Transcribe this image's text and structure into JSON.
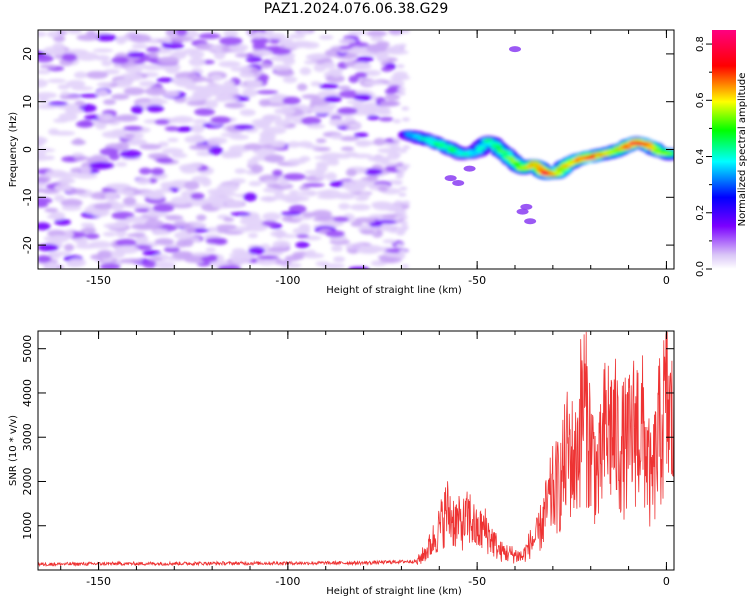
{
  "page": {
    "title": "PAZ1.2024.076.06.38.G29"
  },
  "chart_data": [
    {
      "type": "heatmap",
      "title": "PAZ1.2024.076.06.38.G29",
      "xlabel": "Height of straight line (km)",
      "ylabel": "Frequency (Hz)",
      "xlim": [
        -166,
        2
      ],
      "ylim": [
        -25,
        25
      ],
      "x_ticks": [
        -150,
        -100,
        -50,
        0
      ],
      "y_ticks": [
        -20,
        -10,
        0,
        10,
        20
      ],
      "colorbar": {
        "label": "Normalized spectral amplitude",
        "range": [
          0.0,
          0.85
        ],
        "ticks": [
          0.0,
          0.2,
          0.4,
          0.6,
          0.8
        ],
        "colormap": [
          "#ffffff",
          "#d9c4f7",
          "#7b00ff",
          "#0000ff",
          "#00ffff",
          "#00ff00",
          "#ffff00",
          "#ff0000",
          "#ff0080"
        ]
      },
      "noise_region": {
        "x_range": [
          -166,
          -70
        ],
        "y_range": [
          -25,
          25
        ],
        "amplitude": [
          0.02,
          0.12
        ]
      },
      "signal_ridge": {
        "x": [
          -68,
          -63,
          -58,
          -54,
          -50,
          -47,
          -44,
          -41,
          -38,
          -35,
          -32,
          -29,
          -26,
          -23,
          -20,
          -17,
          -14,
          -11,
          -8,
          -5,
          -2,
          1
        ],
        "frequency": [
          3,
          2,
          0.5,
          -1,
          -0.5,
          2,
          0,
          -2,
          -4,
          -3,
          -5,
          -5,
          -3,
          -2,
          -1.5,
          -1,
          -0.5,
          0.5,
          1.5,
          1,
          -0.5,
          -1
        ],
        "amplitude": [
          0.25,
          0.35,
          0.4,
          0.35,
          0.3,
          0.35,
          0.4,
          0.45,
          0.5,
          0.55,
          0.75,
          0.6,
          0.55,
          0.6,
          0.7,
          0.55,
          0.5,
          0.6,
          0.75,
          0.65,
          0.5,
          0.45
        ]
      }
    },
    {
      "type": "line",
      "xlabel": "Height of straight line (km)",
      "ylabel": "SNR (10 * v/v)",
      "xlim": [
        -166,
        2
      ],
      "ylim": [
        0,
        5400
      ],
      "x_ticks": [
        -150,
        -100,
        -50,
        0
      ],
      "y_ticks": [
        1000,
        2000,
        3000,
        4000,
        5000
      ],
      "series": [
        {
          "color": "#ee3333",
          "x": [
            -166,
            -150,
            -120,
            -100,
            -80,
            -66,
            -63,
            -60,
            -58,
            -56,
            -54,
            -52,
            -50,
            -48,
            -46,
            -44,
            -42,
            -40,
            -38,
            -36,
            -34,
            -32,
            -30,
            -28,
            -26,
            -24,
            -22,
            -20,
            -18,
            -16,
            -14,
            -12,
            -10,
            -8,
            -6,
            -4,
            -2,
            0,
            2
          ],
          "y": [
            130,
            140,
            150,
            155,
            160,
            200,
            550,
            1100,
            1600,
            1300,
            1200,
            1400,
            1000,
            1100,
            800,
            500,
            450,
            400,
            350,
            700,
            900,
            1500,
            2100,
            2300,
            3200,
            2800,
            4600,
            3300,
            2400,
            3800,
            3700,
            3200,
            3300,
            3900,
            3600,
            2200,
            3500,
            4400,
            3600
          ]
        }
      ]
    }
  ]
}
